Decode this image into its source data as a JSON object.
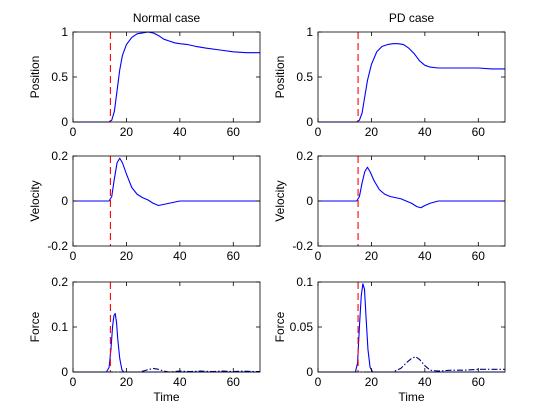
{
  "chart_data": [
    {
      "type": "line",
      "title": "Normal case",
      "xlabel": "",
      "ylabel": "Position",
      "xlim": [
        0,
        70
      ],
      "ylim": [
        0,
        1
      ],
      "xticks": [
        0,
        20,
        40,
        60
      ],
      "yticks": [
        0,
        0.5,
        1
      ],
      "ytick_labels": [
        "0",
        "0.5",
        "1"
      ],
      "grid": false,
      "marker": {
        "x": 14,
        "style": "dashed",
        "color": "#ff0000"
      },
      "series": [
        {
          "color": "#0000ff",
          "style": "solid",
          "points": [
            [
              0,
              0
            ],
            [
              13.5,
              0
            ],
            [
              14.5,
              0.02
            ],
            [
              15.5,
              0.12
            ],
            [
              16.5,
              0.35
            ],
            [
              17.5,
              0.58
            ],
            [
              18.5,
              0.74
            ],
            [
              20,
              0.86
            ],
            [
              22,
              0.94
            ],
            [
              24,
              0.98
            ],
            [
              26,
              0.99
            ],
            [
              28,
              1.0
            ],
            [
              30,
              0.99
            ],
            [
              32,
              0.96
            ],
            [
              34,
              0.92
            ],
            [
              36,
              0.9
            ],
            [
              38,
              0.88
            ],
            [
              40,
              0.87
            ],
            [
              43,
              0.86
            ],
            [
              46,
              0.84
            ],
            [
              50,
              0.82
            ],
            [
              55,
              0.8
            ],
            [
              60,
              0.78
            ],
            [
              65,
              0.77
            ],
            [
              70,
              0.77
            ]
          ]
        }
      ]
    },
    {
      "type": "line",
      "title": "PD case",
      "xlabel": "",
      "ylabel": "Position",
      "xlim": [
        0,
        70
      ],
      "ylim": [
        0,
        1
      ],
      "xticks": [
        0,
        20,
        40,
        60
      ],
      "yticks": [
        0,
        0.5,
        1
      ],
      "ytick_labels": [
        "0",
        "0.5",
        "1"
      ],
      "grid": false,
      "marker": {
        "x": 15,
        "style": "dashed",
        "color": "#ff0000"
      },
      "series": [
        {
          "color": "#0000ff",
          "style": "solid",
          "points": [
            [
              0,
              0
            ],
            [
              14.5,
              0
            ],
            [
              15.5,
              0.02
            ],
            [
              16.5,
              0.1
            ],
            [
              17.5,
              0.28
            ],
            [
              18.5,
              0.46
            ],
            [
              20,
              0.64
            ],
            [
              22,
              0.78
            ],
            [
              24,
              0.84
            ],
            [
              26,
              0.86
            ],
            [
              28,
              0.87
            ],
            [
              30,
              0.87
            ],
            [
              32,
              0.86
            ],
            [
              34,
              0.82
            ],
            [
              36,
              0.76
            ],
            [
              38,
              0.68
            ],
            [
              40,
              0.63
            ],
            [
              42,
              0.61
            ],
            [
              45,
              0.6
            ],
            [
              50,
              0.6
            ],
            [
              55,
              0.6
            ],
            [
              60,
              0.6
            ],
            [
              65,
              0.59
            ],
            [
              70,
              0.59
            ]
          ]
        }
      ]
    },
    {
      "type": "line",
      "title": "",
      "xlabel": "",
      "ylabel": "Velocity",
      "xlim": [
        0,
        70
      ],
      "ylim": [
        -0.2,
        0.2
      ],
      "xticks": [
        0,
        20,
        40,
        60
      ],
      "yticks": [
        -0.2,
        0,
        0.2
      ],
      "ytick_labels": [
        "-0.2",
        "0",
        "0.2"
      ],
      "grid": false,
      "marker": {
        "x": 14,
        "style": "dashed",
        "color": "#ff0000"
      },
      "series": [
        {
          "color": "#0000ff",
          "style": "solid",
          "points": [
            [
              0,
              0
            ],
            [
              13.5,
              0
            ],
            [
              14.5,
              0.02
            ],
            [
              15.5,
              0.1
            ],
            [
              16.5,
              0.17
            ],
            [
              17.5,
              0.19
            ],
            [
              18.5,
              0.17
            ],
            [
              20,
              0.12
            ],
            [
              22,
              0.06
            ],
            [
              24,
              0.03
            ],
            [
              26,
              0.015
            ],
            [
              28,
              0.005
            ],
            [
              30,
              -0.01
            ],
            [
              32,
              -0.02
            ],
            [
              34,
              -0.015
            ],
            [
              36,
              -0.01
            ],
            [
              38,
              -0.005
            ],
            [
              40,
              0
            ],
            [
              45,
              0
            ],
            [
              50,
              0
            ],
            [
              55,
              0
            ],
            [
              60,
              0
            ],
            [
              65,
              0
            ],
            [
              70,
              0
            ]
          ]
        }
      ]
    },
    {
      "type": "line",
      "title": "",
      "xlabel": "",
      "ylabel": "Velocity",
      "xlim": [
        0,
        70
      ],
      "ylim": [
        -0.2,
        0.2
      ],
      "xticks": [
        0,
        20,
        40,
        60
      ],
      "yticks": [
        -0.2,
        0,
        0.2
      ],
      "ytick_labels": [
        "-0.2",
        "0",
        "0.2"
      ],
      "grid": false,
      "marker": {
        "x": 15,
        "style": "dashed",
        "color": "#ff0000"
      },
      "series": [
        {
          "color": "#0000ff",
          "style": "solid",
          "points": [
            [
              0,
              0
            ],
            [
              14.5,
              0
            ],
            [
              15.5,
              0.02
            ],
            [
              16.5,
              0.08
            ],
            [
              17.5,
              0.13
            ],
            [
              18.5,
              0.15
            ],
            [
              19.5,
              0.13
            ],
            [
              21,
              0.09
            ],
            [
              23,
              0.05
            ],
            [
              25,
              0.03
            ],
            [
              27,
              0.02
            ],
            [
              29,
              0.015
            ],
            [
              31,
              0.01
            ],
            [
              33,
              0
            ],
            [
              35,
              -0.01
            ],
            [
              37,
              -0.025
            ],
            [
              38.5,
              -0.03
            ],
            [
              40,
              -0.02
            ],
            [
              42,
              -0.01
            ],
            [
              45,
              0
            ],
            [
              50,
              0
            ],
            [
              55,
              0
            ],
            [
              60,
              0
            ],
            [
              65,
              0
            ],
            [
              70,
              0
            ]
          ]
        }
      ]
    },
    {
      "type": "line",
      "title": "",
      "xlabel": "Time",
      "ylabel": "Force",
      "xlim": [
        0,
        70
      ],
      "ylim": [
        0,
        0.2
      ],
      "xticks": [
        0,
        20,
        40,
        60
      ],
      "yticks": [
        0,
        0.1,
        0.2
      ],
      "ytick_labels": [
        "0",
        "0.1",
        "0.2"
      ],
      "grid": false,
      "marker": {
        "x": 14,
        "style": "dashed",
        "color": "#ff0000"
      },
      "series": [
        {
          "color": "#0000ff",
          "style": "solid",
          "points": [
            [
              0,
              0
            ],
            [
              12.5,
              0
            ],
            [
              13.5,
              0.01
            ],
            [
              14.2,
              0.05
            ],
            [
              14.8,
              0.1
            ],
            [
              15.3,
              0.125
            ],
            [
              15.8,
              0.13
            ],
            [
              16.3,
              0.11
            ],
            [
              16.8,
              0.07
            ],
            [
              17.5,
              0.03
            ],
            [
              18.3,
              0.005
            ],
            [
              19,
              0
            ],
            [
              70,
              0
            ]
          ]
        },
        {
          "color": "#000080",
          "style": "dashdot",
          "points": [
            [
              0,
              0
            ],
            [
              19,
              0
            ],
            [
              25,
              0
            ],
            [
              28,
              0.005
            ],
            [
              30,
              0.008
            ],
            [
              32,
              0.006
            ],
            [
              34,
              0.002
            ],
            [
              36,
              0
            ],
            [
              40,
              0.002
            ],
            [
              44,
              0.001
            ],
            [
              48,
              0.002
            ],
            [
              52,
              0.001
            ],
            [
              56,
              0.002
            ],
            [
              60,
              0.001
            ],
            [
              64,
              0.002
            ],
            [
              68,
              0.001
            ],
            [
              70,
              0.001
            ]
          ]
        }
      ]
    },
    {
      "type": "line",
      "title": "",
      "xlabel": "Time",
      "ylabel": "Force",
      "xlim": [
        0,
        70
      ],
      "ylim": [
        0,
        0.1
      ],
      "xticks": [
        0,
        20,
        40,
        60
      ],
      "yticks": [
        0,
        0.05,
        0.1
      ],
      "ytick_labels": [
        "0",
        "0.05",
        "0.1"
      ],
      "grid": false,
      "marker": {
        "x": 15,
        "style": "dashed",
        "color": "#ff0000"
      },
      "series": [
        {
          "color": "#0000ff",
          "style": "solid",
          "points": [
            [
              0,
              0
            ],
            [
              14,
              0
            ],
            [
              14.8,
              0.01
            ],
            [
              15.5,
              0.05
            ],
            [
              16.2,
              0.085
            ],
            [
              16.8,
              0.098
            ],
            [
              17.4,
              0.092
            ],
            [
              18,
              0.06
            ],
            [
              18.7,
              0.025
            ],
            [
              19.5,
              0.005
            ],
            [
              20.5,
              0
            ],
            [
              70,
              0
            ]
          ]
        },
        {
          "color": "#000080",
          "style": "dashdot",
          "points": [
            [
              0,
              0
            ],
            [
              20.5,
              0
            ],
            [
              28,
              0
            ],
            [
              31,
              0.004
            ],
            [
              33,
              0.01
            ],
            [
              35,
              0.015
            ],
            [
              36.5,
              0.017
            ],
            [
              38,
              0.014
            ],
            [
              40,
              0.007
            ],
            [
              42,
              0.002
            ],
            [
              45,
              0.001
            ],
            [
              50,
              0.002
            ],
            [
              55,
              0.002
            ],
            [
              60,
              0.003
            ],
            [
              65,
              0.003
            ],
            [
              70,
              0.003
            ]
          ]
        }
      ]
    }
  ]
}
